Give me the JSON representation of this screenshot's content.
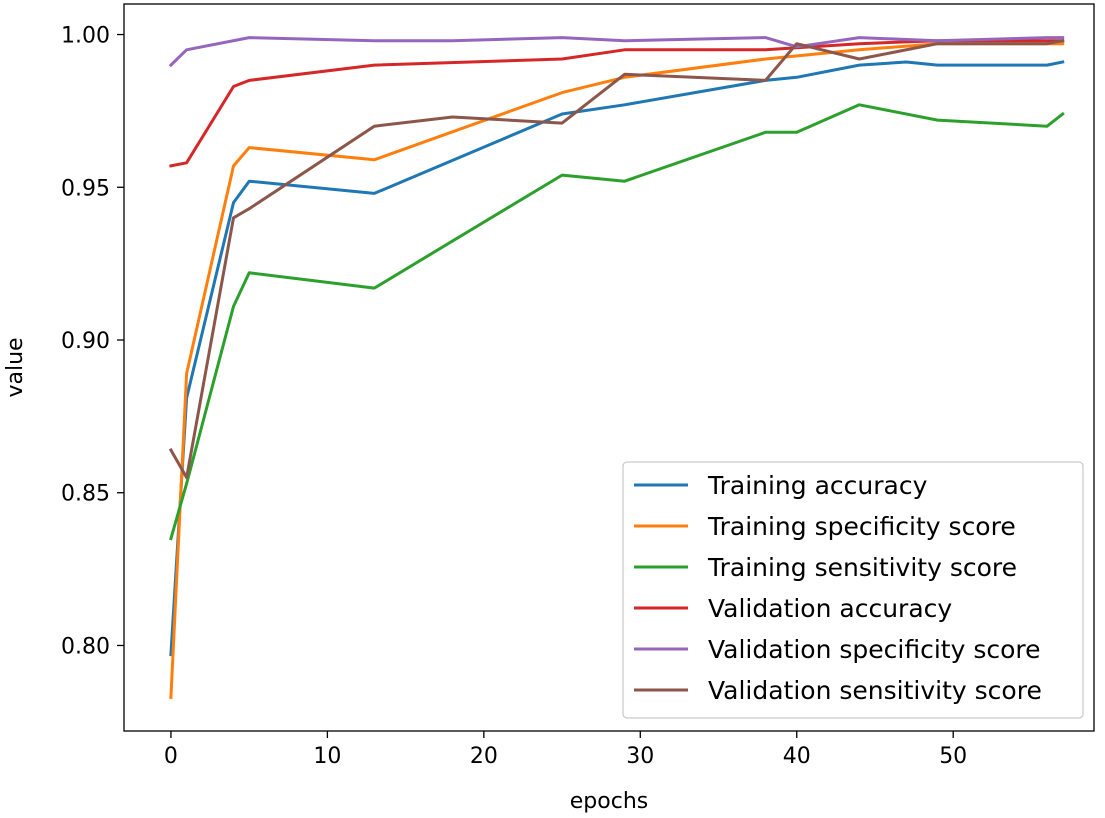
{
  "chart_data": {
    "type": "line",
    "title": "",
    "xlabel": "epochs",
    "ylabel": "value",
    "xlim": [
      -3,
      59
    ],
    "ylim": [
      0.772,
      1.01
    ],
    "xticks": [
      0,
      10,
      20,
      30,
      40,
      50
    ],
    "xtick_labels": [
      "0",
      "10",
      "20",
      "30",
      "40",
      "50"
    ],
    "yticks": [
      0.8,
      0.85,
      0.9,
      0.95,
      1.0
    ],
    "ytick_labels": [
      "0.80",
      "0.85",
      "0.90",
      "0.95",
      "1.00"
    ],
    "legend_position": "lower-right",
    "series": [
      {
        "name": "Training accuracy",
        "color": "#1f77b4",
        "x": [
          0,
          1,
          4,
          5,
          13,
          25,
          29,
          38,
          40,
          44,
          47,
          49,
          56,
          57
        ],
        "y": [
          0.797,
          0.881,
          0.945,
          0.952,
          0.948,
          0.974,
          0.977,
          0.985,
          0.986,
          0.99,
          0.991,
          0.99,
          0.99,
          0.991
        ]
      },
      {
        "name": "Training specificity score",
        "color": "#ff7f0e",
        "x": [
          0,
          1,
          4,
          5,
          13,
          25,
          29,
          38,
          44,
          49,
          56,
          57
        ],
        "y": [
          0.783,
          0.889,
          0.957,
          0.963,
          0.959,
          0.981,
          0.986,
          0.992,
          0.995,
          0.997,
          0.997,
          0.997
        ]
      },
      {
        "name": "Training sensitivity  score",
        "color": "#2ca02c",
        "x": [
          0,
          1,
          4,
          5,
          13,
          25,
          29,
          38,
          40,
          44,
          49,
          56,
          57
        ],
        "y": [
          0.835,
          0.853,
          0.911,
          0.922,
          0.917,
          0.954,
          0.952,
          0.968,
          0.968,
          0.977,
          0.972,
          0.97,
          0.974
        ]
      },
      {
        "name": "Validation accuracy",
        "color": "#d62728",
        "x": [
          0,
          1,
          4,
          5,
          13,
          25,
          29,
          38,
          44,
          49,
          56,
          57
        ],
        "y": [
          0.957,
          0.958,
          0.983,
          0.985,
          0.99,
          0.992,
          0.995,
          0.995,
          0.997,
          0.998,
          0.998,
          0.998
        ]
      },
      {
        "name": "Validation specificity score",
        "color": "#9467bd",
        "x": [
          0,
          1,
          5,
          13,
          18,
          25,
          29,
          38,
          40,
          44,
          49,
          56,
          57
        ],
        "y": [
          0.99,
          0.995,
          0.999,
          0.998,
          0.998,
          0.999,
          0.998,
          0.999,
          0.996,
          0.999,
          0.998,
          0.999,
          0.999
        ]
      },
      {
        "name": "Validation sensitivity score",
        "color": "#8c564b",
        "x": [
          0,
          1,
          4,
          5,
          13,
          18,
          25,
          29,
          38,
          40,
          44,
          49,
          56,
          57
        ],
        "y": [
          0.864,
          0.855,
          0.94,
          0.943,
          0.97,
          0.973,
          0.971,
          0.987,
          0.985,
          0.997,
          0.992,
          0.997,
          0.997,
          0.998
        ]
      }
    ]
  }
}
